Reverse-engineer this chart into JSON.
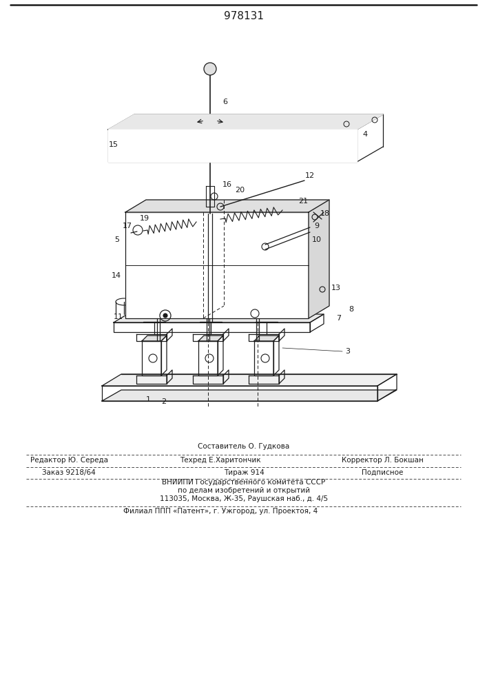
{
  "title": "978131",
  "bg_color": "#f5f5f0",
  "line_color": "#1a1a1a",
  "footer": {
    "col1_row1": "Редактор Ю. Середа",
    "col2_row0": "Составитель О. Гудкова",
    "col2_row1": "Техред Е.Харитончик",
    "col3_row1": "Корректор Л. Бокшан",
    "col1_row2": "Заказ 9218/64",
    "col2_row2": "Тираж 914",
    "col3_row2": "Подписное",
    "vnipi1": "ВНИИПИ Государственного комитета СССР",
    "vnipi2": "по делам изобретений и открытий",
    "vnipi3": "113035, Москва, Ж-35, Раушская наб., д. 4/5",
    "filial": "Филиал ППП «Патент», г. Ужгород, ул. Проектоя, 4"
  }
}
